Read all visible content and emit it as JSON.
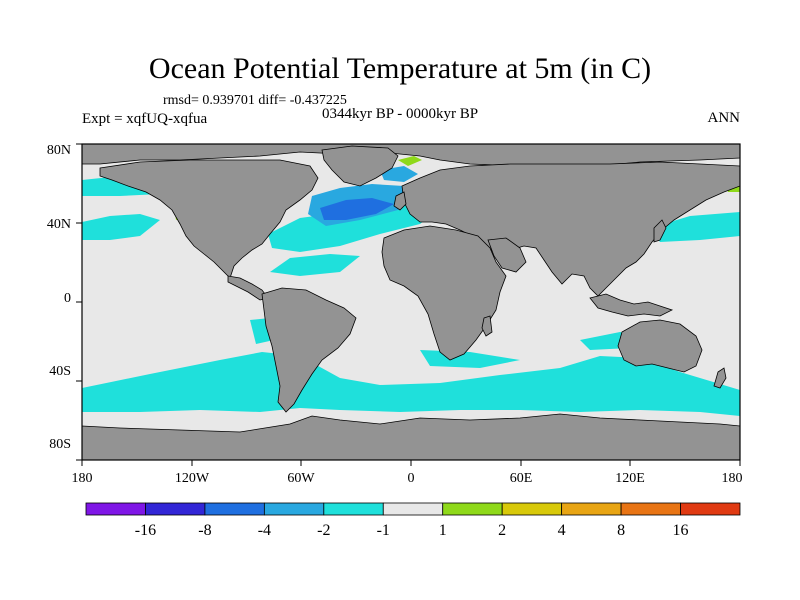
{
  "figure": {
    "title": "Ocean Potential Temperature at 5m (in C)",
    "stats": "rmsd= 0.939701 diff= -0.437225",
    "experiment": "Expt = xqfUQ-xqfua",
    "period": "0344kyr BP - 0000kyr BP",
    "season": "ANN"
  },
  "axes": {
    "lat_labels": [
      "80N",
      "40N",
      "0",
      "40S",
      "80S"
    ],
    "lon_labels": [
      "180",
      "120W",
      "60W",
      "0",
      "60E",
      "120E",
      "180"
    ]
  },
  "colorbar": {
    "labels": [
      "-16",
      "-8",
      "-4",
      "-2",
      "-1",
      "1",
      "2",
      "4",
      "8",
      "16"
    ],
    "colors": [
      "#7f16e6",
      "#3226d6",
      "#1f6fe0",
      "#29a8e0",
      "#1fe0db",
      "#e8e8e8",
      "#8fd91a",
      "#d8c90a",
      "#e8a514",
      "#e87414",
      "#e03a12"
    ]
  },
  "palette": {
    "land": "#939393",
    "ocean_neutral": "#e8e8e8",
    "cyan": "#1fe0db",
    "light_blue": "#29a8e0",
    "blue": "#1f6fe0",
    "green": "#8fd91a",
    "yellow": "#d8c90a",
    "orange": "#e8a514"
  }
}
